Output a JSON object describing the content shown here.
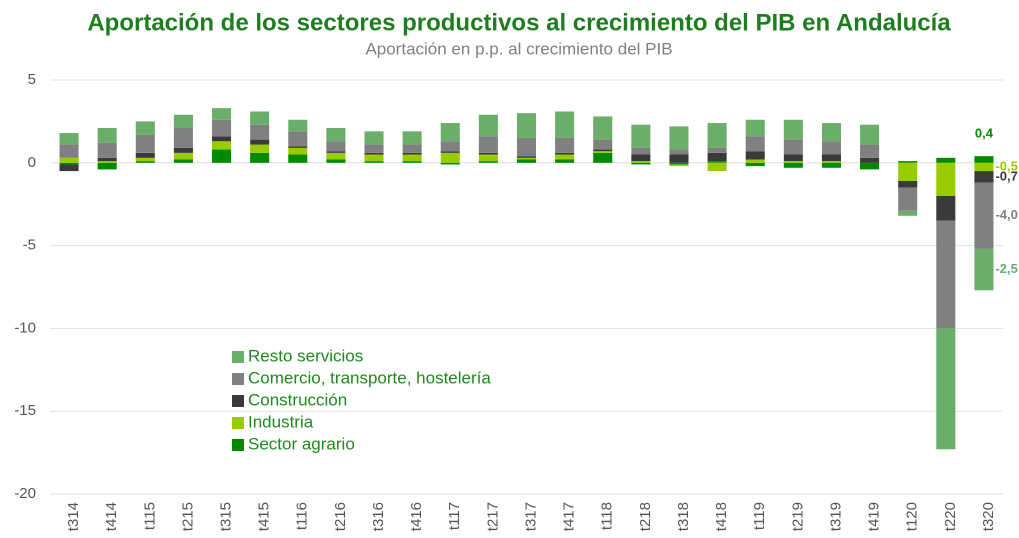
{
  "chart_data": {
    "type": "stacked_bar",
    "title": "Aportación de los sectores productivos al crecimiento del PIB en Andalucía",
    "subtitle": "Aportación en p.p. al crecimiento del PIB",
    "categories": [
      "t314",
      "t414",
      "t115",
      "t215",
      "t315",
      "t415",
      "t116",
      "t216",
      "t316",
      "t416",
      "t117",
      "t217",
      "t317",
      "t417",
      "t118",
      "t218",
      "t318",
      "t418",
      "t119",
      "t219",
      "t319",
      "t419",
      "t120",
      "t220",
      "t320"
    ],
    "series": [
      {
        "name": "Sector agrario",
        "color": "#008a00",
        "values": [
          -0.1,
          -0.4,
          0.1,
          0.2,
          0.8,
          0.6,
          0.5,
          0.2,
          0.1,
          0.1,
          -0.1,
          0.1,
          0.2,
          0.2,
          0.6,
          -0.1,
          -0.1,
          0.1,
          -0.2,
          -0.3,
          -0.3,
          -0.4,
          0.1,
          0.3,
          0.4
        ],
        "value_labels": [
          null,
          null,
          null,
          null,
          null,
          null,
          null,
          null,
          null,
          null,
          null,
          null,
          null,
          null,
          null,
          null,
          null,
          null,
          null,
          null,
          null,
          null,
          null,
          null,
          "0,4"
        ]
      },
      {
        "name": "Industria",
        "color": "#99cc00",
        "values": [
          0.3,
          0.1,
          0.2,
          0.4,
          0.5,
          0.5,
          0.4,
          0.4,
          0.4,
          0.4,
          0.6,
          0.4,
          0.1,
          0.3,
          0.1,
          0.1,
          -0.1,
          -0.5,
          0.2,
          0.1,
          0.1,
          0.0,
          -1.1,
          -2.0,
          -0.5
        ],
        "value_labels": [
          null,
          null,
          null,
          null,
          null,
          null,
          null,
          null,
          null,
          null,
          null,
          null,
          null,
          null,
          null,
          null,
          null,
          null,
          null,
          null,
          null,
          null,
          null,
          null,
          "-0,5"
        ]
      },
      {
        "name": "Construcción",
        "color": "#3a3a3a",
        "values": [
          -0.4,
          0.2,
          0.3,
          0.3,
          0.3,
          0.3,
          0.1,
          0.1,
          0.1,
          0.1,
          0.1,
          0.1,
          0.1,
          0.1,
          0.1,
          0.4,
          0.5,
          0.5,
          0.5,
          0.4,
          0.4,
          0.3,
          -0.4,
          -1.5,
          -0.7
        ],
        "value_labels": [
          null,
          null,
          null,
          null,
          null,
          null,
          null,
          null,
          null,
          null,
          null,
          null,
          null,
          null,
          null,
          null,
          null,
          null,
          null,
          null,
          null,
          null,
          null,
          null,
          "-0,7"
        ]
      },
      {
        "name": "Comercio, transporte, hostelería",
        "color": "#808080",
        "values": [
          0.8,
          0.9,
          1.1,
          1.2,
          1.0,
          0.9,
          0.9,
          0.6,
          0.5,
          0.5,
          0.6,
          1.0,
          1.1,
          0.9,
          0.6,
          0.4,
          0.3,
          0.3,
          0.9,
          0.9,
          0.8,
          0.8,
          -1.4,
          -6.5,
          -4.0
        ],
        "value_labels": [
          null,
          null,
          null,
          null,
          null,
          null,
          null,
          null,
          null,
          null,
          null,
          null,
          null,
          null,
          null,
          null,
          null,
          null,
          null,
          null,
          null,
          null,
          null,
          null,
          "-4,0"
        ]
      },
      {
        "name": "Resto servicios",
        "color": "#6aae6a",
        "values": [
          0.7,
          0.9,
          0.8,
          0.8,
          0.7,
          0.8,
          0.7,
          0.8,
          0.8,
          0.8,
          1.1,
          1.3,
          1.5,
          1.6,
          1.4,
          1.4,
          1.4,
          1.5,
          1.0,
          1.2,
          1.1,
          1.2,
          -0.3,
          -7.3,
          -2.5
        ],
        "value_labels": [
          null,
          null,
          null,
          null,
          null,
          null,
          null,
          null,
          null,
          null,
          null,
          null,
          null,
          null,
          null,
          null,
          null,
          null,
          null,
          null,
          null,
          null,
          null,
          null,
          "-2,5"
        ]
      }
    ],
    "ylim": [
      -20,
      5
    ],
    "yticks": [
      5,
      0,
      -5,
      -10,
      -15,
      -20
    ],
    "grid": true,
    "legend": "left"
  }
}
